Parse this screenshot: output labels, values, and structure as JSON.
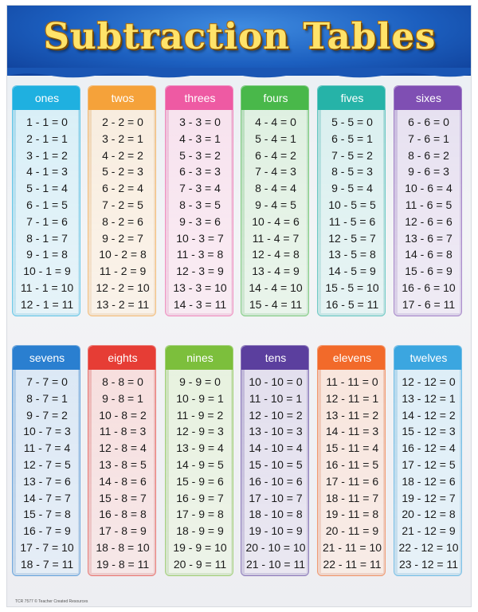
{
  "title": "Subtraction Tables",
  "footer": "TCR 7577 © Teacher Created Resources",
  "tables": [
    {
      "name": "ones",
      "color": "#1fb0e0",
      "rows": [
        "1 - 1 = 0",
        "2 - 1 = 1",
        "3 - 1 = 2",
        "4 - 1 = 3",
        "5 - 1 = 4",
        "6 - 1 = 5",
        "7 - 1 = 6",
        "8 - 1 = 7",
        "9 - 1 = 8",
        "10 - 1 = 9",
        "11 - 1 = 10",
        "12 - 1 = 11"
      ]
    },
    {
      "name": "twos",
      "color": "#f5a23a",
      "rows": [
        "2 - 2 = 0",
        "3 - 2 = 1",
        "4 - 2 = 2",
        "5 - 2 = 3",
        "6 - 2 = 4",
        "7 - 2 = 5",
        "8 - 2 = 6",
        "9 - 2 = 7",
        "10 - 2 = 8",
        "11 - 2 = 9",
        "12 - 2 = 10",
        "13 - 2 = 11"
      ]
    },
    {
      "name": "threes",
      "color": "#ee5aa3",
      "rows": [
        "3 - 3 = 0",
        "4 - 3 = 1",
        "5 - 3 = 2",
        "6 - 3 = 3",
        "7 - 3 = 4",
        "8 - 3 = 5",
        "9 - 3 = 6",
        "10 - 3 = 7",
        "11 - 3 = 8",
        "12 - 3 = 9",
        "13 - 3 = 10",
        "14 - 3 = 11"
      ]
    },
    {
      "name": "fours",
      "color": "#49b84a",
      "rows": [
        "4 - 4 = 0",
        "5 - 4 = 1",
        "6 - 4 = 2",
        "7 - 4 = 3",
        "8 - 4 = 4",
        "9 - 4 = 5",
        "10 - 4 = 6",
        "11 - 4 = 7",
        "12 - 4 = 8",
        "13 - 4 = 9",
        "14 - 4 = 10",
        "15 - 4 = 11"
      ]
    },
    {
      "name": "fives",
      "color": "#26b3a8",
      "rows": [
        "5 - 5 = 0",
        "6 - 5 = 1",
        "7 - 5 = 2",
        "8 - 5 = 3",
        "9 - 5 = 4",
        "10 - 5 = 5",
        "11 - 5 = 6",
        "12 - 5 = 7",
        "13 - 5 = 8",
        "14 - 5 = 9",
        "15 - 5 = 10",
        "16 - 5 = 11"
      ]
    },
    {
      "name": "sixes",
      "color": "#7f4fb3",
      "rows": [
        "6 - 6 = 0",
        "7 - 6 = 1",
        "8 - 6 = 2",
        "9 - 6 = 3",
        "10 - 6 = 4",
        "11 - 6 = 5",
        "12 - 6 = 6",
        "13 - 6 = 7",
        "14 - 6 = 8",
        "15 - 6 = 9",
        "16 - 6 = 10",
        "17 - 6 = 11"
      ]
    },
    {
      "name": "sevens",
      "color": "#2a7fd0",
      "rows": [
        "7 - 7 = 0",
        "8 - 7 = 1",
        "9 - 7 = 2",
        "10 - 7 = 3",
        "11 - 7 = 4",
        "12 - 7 = 5",
        "13 - 7 = 6",
        "14 - 7 = 7",
        "15 - 7 = 8",
        "16 - 7 = 9",
        "17 - 7 = 10",
        "18 - 7 = 11"
      ]
    },
    {
      "name": "eights",
      "color": "#e63d35",
      "rows": [
        "8 - 8 = 0",
        "9 - 8 = 1",
        "10 - 8 = 2",
        "11 - 8 = 3",
        "12 - 8 = 4",
        "13 - 8 = 5",
        "14 - 8 = 6",
        "15 - 8 = 7",
        "16 - 8 = 8",
        "17 - 8 = 9",
        "18 - 8 = 10",
        "19 - 8 = 11"
      ]
    },
    {
      "name": "nines",
      "color": "#7cbf3c",
      "rows": [
        "9 - 9 = 0",
        "10 - 9 = 1",
        "11 - 9 = 2",
        "12 - 9 = 3",
        "13 - 9 = 4",
        "14 - 9 = 5",
        "15 - 9 = 6",
        "16 - 9 = 7",
        "17 - 9 = 8",
        "18 - 9 = 9",
        "19 - 9 = 10",
        "20 - 9 = 11"
      ]
    },
    {
      "name": "tens",
      "color": "#5b3f9e",
      "rows": [
        "10 - 10 = 0",
        "11 - 10 = 1",
        "12 - 10 = 2",
        "13 - 10 = 3",
        "14 - 10 = 4",
        "15 - 10 = 5",
        "16 - 10 = 6",
        "17 - 10 = 7",
        "18 - 10 = 8",
        "19 - 10 = 9",
        "20 - 10 = 10",
        "21 - 10 = 11"
      ]
    },
    {
      "name": "elevens",
      "color": "#f26a2a",
      "rows": [
        "11 - 11 = 0",
        "12 - 11 = 1",
        "13 - 11 = 2",
        "14 - 11 = 3",
        "15 - 11 = 4",
        "16 - 11 = 5",
        "17 - 11 = 6",
        "18 - 11 = 7",
        "19 - 11 = 8",
        "20 - 11 = 9",
        "21 - 11 = 10",
        "22 - 11 = 11"
      ]
    },
    {
      "name": "twelves",
      "color": "#3ba6e0",
      "rows": [
        "12 - 12 = 0",
        "13 - 12 = 1",
        "14 - 12 = 2",
        "15 - 12 = 3",
        "16 - 12 = 4",
        "17 - 12 = 5",
        "18 - 12 = 6",
        "19 - 12 = 7",
        "20 - 12 = 8",
        "21 - 12 = 9",
        "22 - 12 = 10",
        "23 - 12 = 11"
      ]
    }
  ]
}
